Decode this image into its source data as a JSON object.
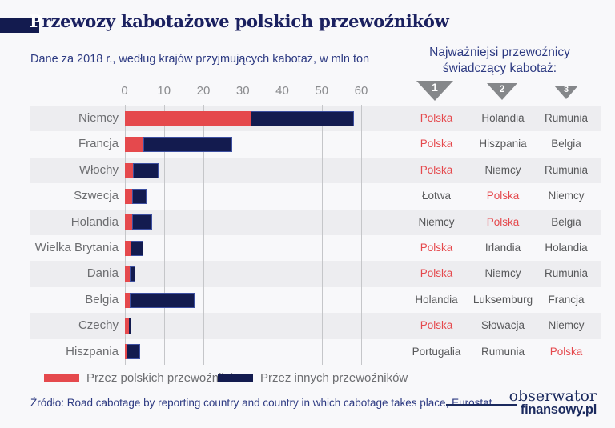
{
  "page": {
    "background": "#f8f8fa"
  },
  "header": {
    "title": "Przewozy kabotażowe polskich przewoźników",
    "title_cap": "P",
    "title_rest": "rzewozy kabotażowe polskich przewoźników",
    "subtitle": "Dane za 2018 r., według krajów przyjmujących kabotaż, w mln ton"
  },
  "right_panel": {
    "heading_line1": "Najważniejsi przewoźnicy",
    "heading_line2": "świadczący kabotaż:",
    "rank_labels": [
      "1",
      "2",
      "3"
    ],
    "triangle_color": "#85878a"
  },
  "chart_data": {
    "type": "bar",
    "orientation": "horizontal-stacked",
    "title": "Przewozy kabotażowe polskich przewoźników",
    "subtitle": "Dane za 2018 r., według krajów przyjmujących kabotaż, w mln ton",
    "unit": "mln ton",
    "xticks": [
      0,
      10,
      20,
      30,
      40,
      50,
      60
    ],
    "xlim": [
      0,
      65
    ],
    "grid": true,
    "categories": [
      "Niemcy",
      "Francja",
      "Włochy",
      "Szwecja",
      "Holandia",
      "Wielka Brytania",
      "Dania",
      "Belgia",
      "Czechy",
      "Hiszpania"
    ],
    "series": [
      {
        "name": "Przez polskich przewoźników",
        "color": "#e5494d",
        "values": [
          32,
          4.7,
          2.1,
          1.9,
          1.9,
          1.5,
          1.3,
          1.3,
          1.1,
          0.6
        ]
      },
      {
        "name": "Przez innych przewoźników",
        "color": "#131b4f",
        "values": [
          26.2,
          22.6,
          6.5,
          3.7,
          5.1,
          3.3,
          1.4,
          16.5,
          0.7,
          3.4
        ]
      }
    ]
  },
  "carriers_table": {
    "highlight": "Polska",
    "highlight_color": "#e5494d",
    "rows": [
      {
        "country": "Niemcy",
        "top": [
          "Polska",
          "Holandia",
          "Rumunia"
        ]
      },
      {
        "country": "Francja",
        "top": [
          "Polska",
          "Hiszpania",
          "Belgia"
        ]
      },
      {
        "country": "Włochy",
        "top": [
          "Polska",
          "Niemcy",
          "Rumunia"
        ]
      },
      {
        "country": "Szwecja",
        "top": [
          "Łotwa",
          "Polska",
          "Niemcy"
        ]
      },
      {
        "country": "Holandia",
        "top": [
          "Niemcy",
          "Polska",
          "Belgia"
        ]
      },
      {
        "country": "Wielka Brytania",
        "top": [
          "Polska",
          "Irlandia",
          "Holandia"
        ]
      },
      {
        "country": "Dania",
        "top": [
          "Polska",
          "Niemcy",
          "Rumunia"
        ]
      },
      {
        "country": "Belgia",
        "top": [
          "Holandia",
          "Luksemburg",
          "Francja"
        ]
      },
      {
        "country": "Czechy",
        "top": [
          "Polska",
          "Słowacja",
          "Niemcy"
        ]
      },
      {
        "country": "Hiszpania",
        "top": [
          "Portugalia",
          "Rumunia",
          "Polska"
        ]
      }
    ]
  },
  "legend": {
    "items": [
      {
        "label": "Przez polskich przewoźników",
        "color": "#e5494d"
      },
      {
        "label": "Przez innych przewoźników",
        "color": "#131b4f"
      }
    ]
  },
  "footer": {
    "source": "Źródło: Road cabotage by reporting country and country in which cabotage takes place, Eurostat",
    "logo_line1": "obserwator",
    "logo_line2": "finansowy.pl"
  }
}
